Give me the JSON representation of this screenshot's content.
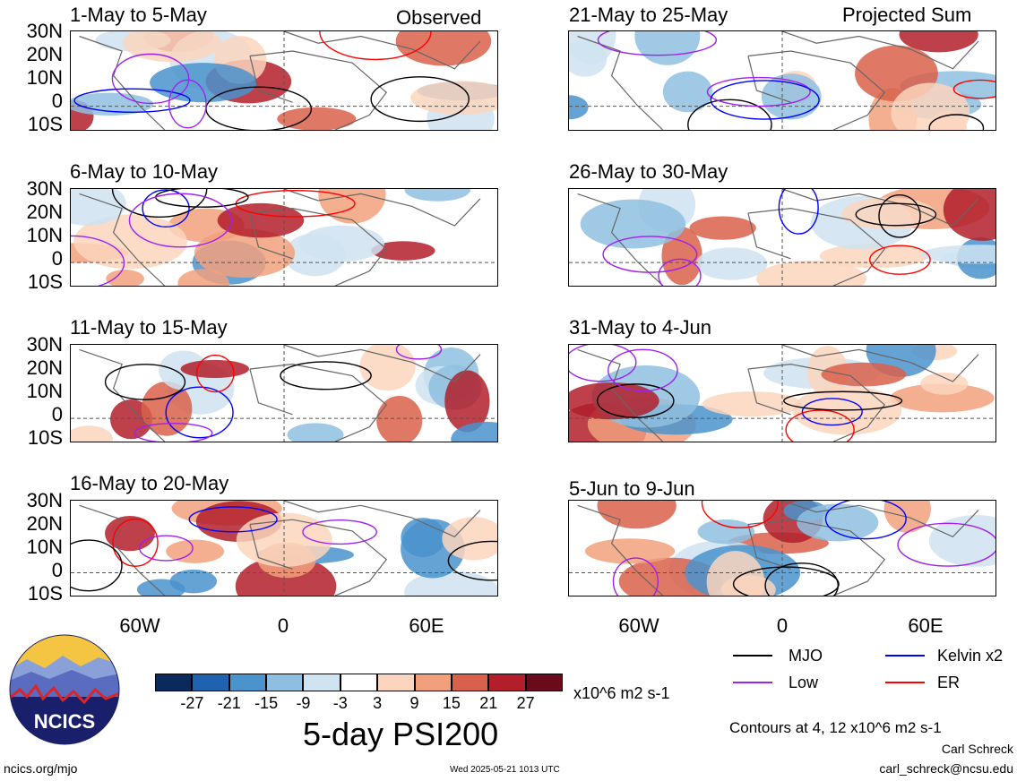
{
  "observed_label": "Observed",
  "projected_label": "Projected Sum",
  "panels_left": [
    {
      "title": "1-May to 5-May"
    },
    {
      "title": "6-May to 10-May"
    },
    {
      "title": "11-May to 15-May"
    },
    {
      "title": "16-May to 20-May"
    }
  ],
  "panels_right": [
    {
      "title": "21-May to 25-May"
    },
    {
      "title": "26-May to 30-May"
    },
    {
      "title": "31-May to 4-Jun"
    },
    {
      "title": "5-Jun to 9-Jun"
    }
  ],
  "lat_labels": [
    "30N",
    "20N",
    "10N",
    "0",
    "10S"
  ],
  "lon_labels": [
    "60W",
    "0",
    "60E"
  ],
  "legend": {
    "mjo": {
      "label": "MJO",
      "color": "#000000"
    },
    "kelvin": {
      "label": "Kelvin x2",
      "color": "#0000ff"
    },
    "low": {
      "label": "Low",
      "color": "#a020f0"
    },
    "er": {
      "label": "ER",
      "color": "#ff0000"
    }
  },
  "colorbar": {
    "colors": [
      "#0b2a5c",
      "#1f63b0",
      "#4a93cc",
      "#8fbfe0",
      "#cfe3f1",
      "#ffffff",
      "#fbd5bd",
      "#f2a07c",
      "#d9604a",
      "#b21f2a",
      "#6b0a1a"
    ],
    "ticks": [
      "-27",
      "-21",
      "-15",
      "-9",
      "-3",
      "3",
      "9",
      "15",
      "21",
      "27"
    ],
    "units": "x10^6 m2 s-1"
  },
  "main_title": "5-day PSI200",
  "contour_note": "Contours at 4, 12 x10^6 m2 s-1",
  "author": "Carl Schreck",
  "email": "carl_schreck@ncsu.edu",
  "site": "ncics.org/mjo",
  "timestamp": "Wed 2025-05-21 1013 UTC",
  "logo_text": "NCICS"
}
